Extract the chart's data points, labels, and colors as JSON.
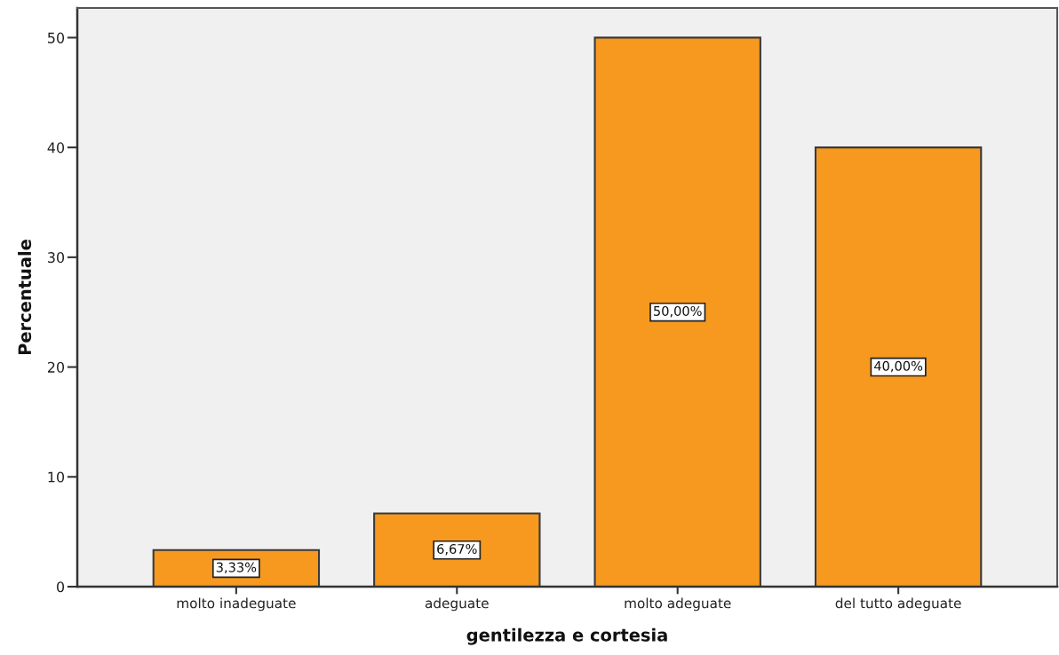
{
  "chart_data": {
    "type": "bar",
    "xlabel": "gentilezza e cortesia",
    "ylabel": "Percentuale",
    "categories": [
      "molto inadeguate",
      "adeguate",
      "molto adeguate",
      "del tutto adeguate"
    ],
    "values": [
      3.33,
      6.67,
      50,
      40
    ],
    "color": "#f7991f",
    "value_labels": [
      "3,33%",
      "6,67%",
      "50,00%",
      "40,00%"
    ],
    "ylim": [
      0,
      52.7
    ],
    "yticks": [
      0,
      10,
      20,
      30,
      40,
      50
    ],
    "grid": false,
    "legend": false
  }
}
